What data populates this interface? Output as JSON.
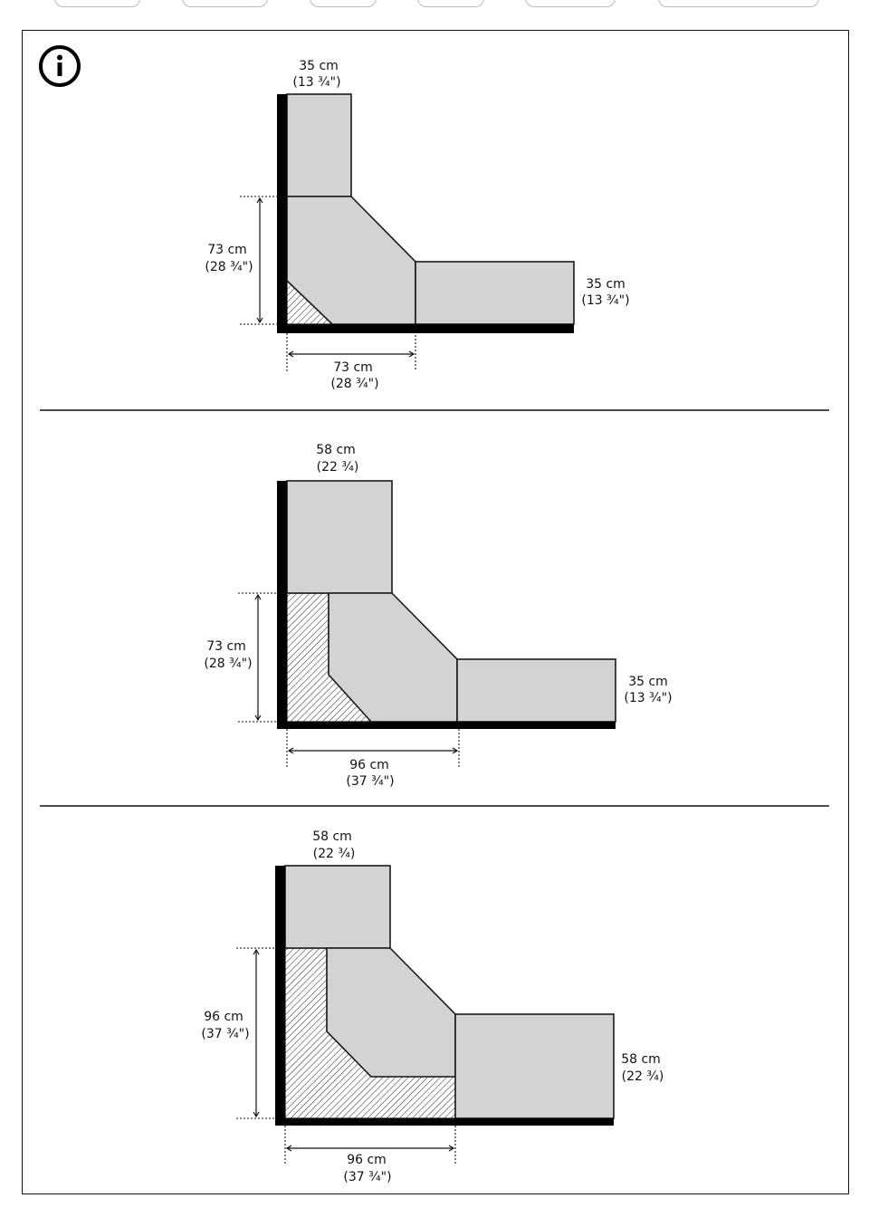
{
  "tabs": [
    {
      "name": "tab-1"
    },
    {
      "name": "tab-2"
    },
    {
      "name": "tab-3"
    },
    {
      "name": "tab-4"
    },
    {
      "name": "tab-5"
    },
    {
      "name": "tab-6"
    }
  ],
  "info_icon": "info-icon",
  "colors": {
    "module_fill": "#d1d3d4",
    "wall": "#000000",
    "stroke": "#1a1a1a"
  },
  "panels": [
    {
      "top_width": {
        "cm": "35 cm",
        "in": "(13 ¾\")"
      },
      "side_depth": {
        "cm": "73 cm",
        "in": "(28 ¾\")"
      },
      "right_width": {
        "cm": "35 cm",
        "in": "(13 ¾\")"
      },
      "bottom_depth": {
        "cm": "73 cm",
        "in": "(28 ¾\")"
      }
    },
    {
      "top_width": {
        "cm": "58 cm",
        "in": "(22 ¾)"
      },
      "side_depth": {
        "cm": "73 cm",
        "in": "(28 ¾\")"
      },
      "right_width": {
        "cm": "35 cm",
        "in": "(13 ¾\")"
      },
      "bottom_depth": {
        "cm": "96 cm",
        "in": "(37 ¾\")"
      }
    },
    {
      "top_width": {
        "cm": "58 cm",
        "in": "(22 ¾)"
      },
      "side_depth": {
        "cm": "96 cm",
        "in": "(37 ¾\")"
      },
      "right_width": {
        "cm": "58 cm",
        "in": "(22 ¾)"
      },
      "bottom_depth": {
        "cm": "96 cm",
        "in": "(37 ¾\")"
      }
    }
  ]
}
